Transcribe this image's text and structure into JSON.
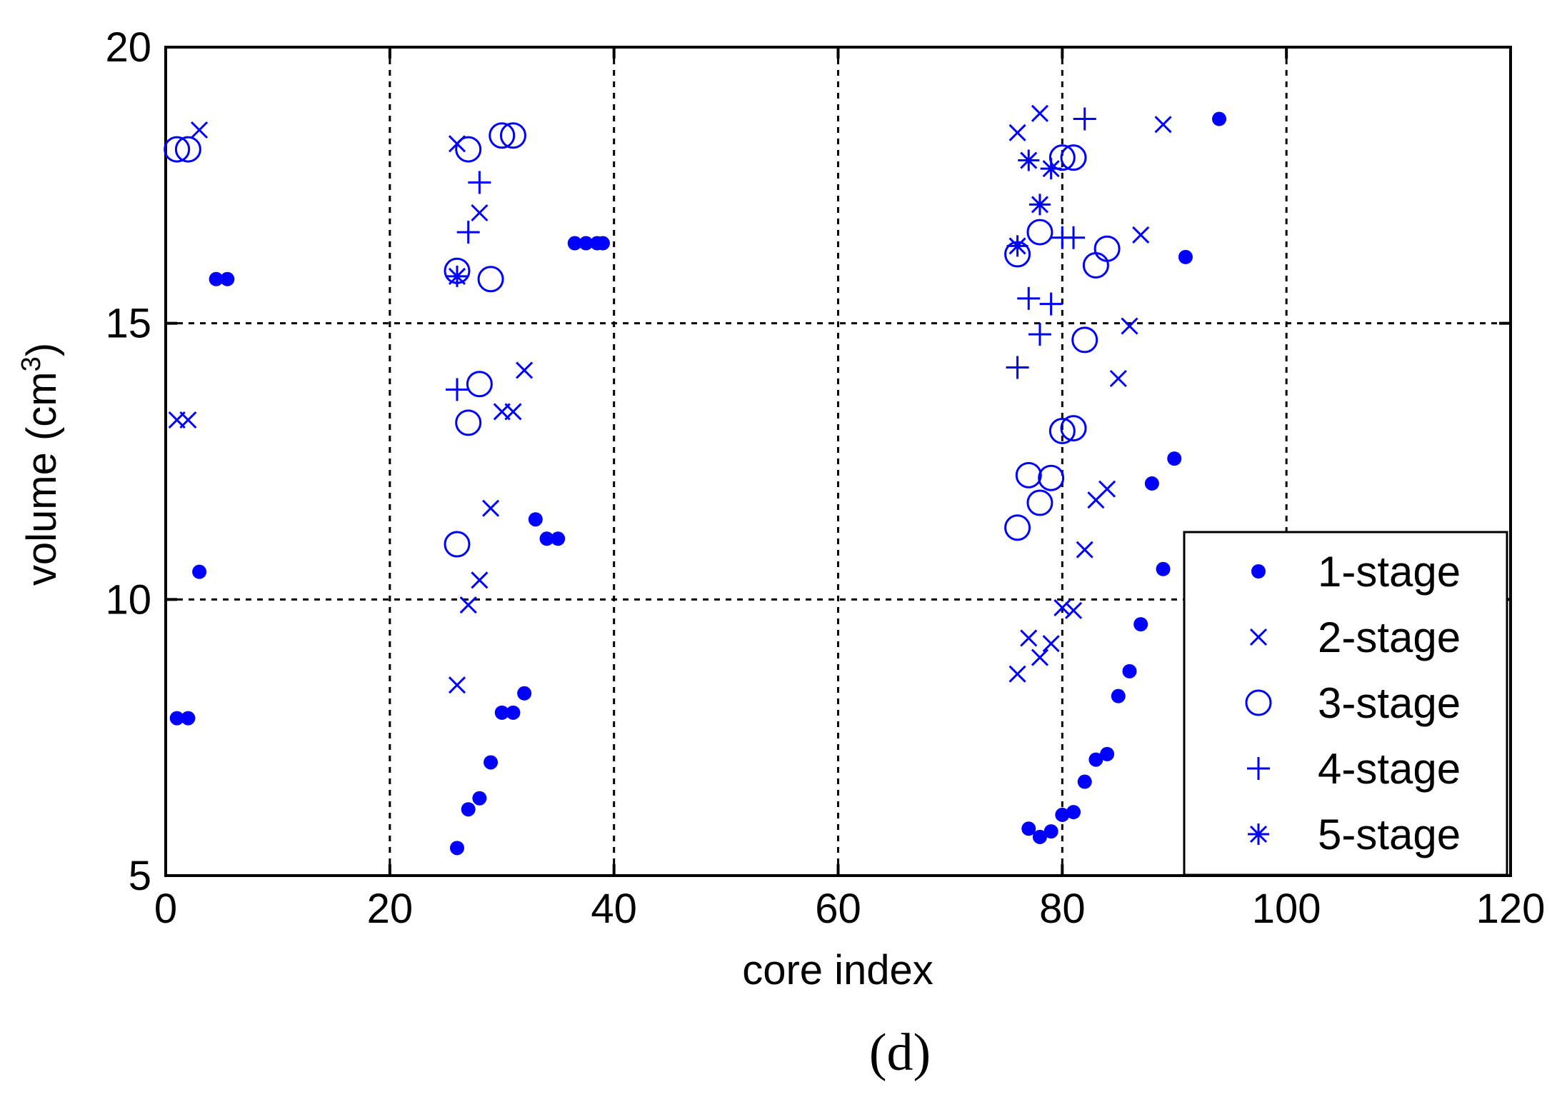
{
  "colors": {
    "marker": "#0000ff",
    "axis": "#000000",
    "background": "#ffffff"
  },
  "caption": "(d)",
  "chart_data": {
    "type": "scatter",
    "title": "",
    "xlabel": "core index",
    "ylabel_main": "volume (cm",
    "ylabel_sup": "3",
    "ylabel_end": ")",
    "xlim": [
      0,
      120
    ],
    "ylim": [
      5,
      20
    ],
    "xticks": [
      0,
      20,
      40,
      60,
      80,
      100,
      120
    ],
    "yticks": [
      5,
      10,
      15,
      20
    ],
    "grid": true,
    "legend_position": "bottom-right",
    "series": [
      {
        "name": "1-stage",
        "marker": "dot",
        "points": [
          [
            1,
            7.85
          ],
          [
            2,
            7.85
          ],
          [
            3,
            10.5
          ],
          [
            4.5,
            15.8
          ],
          [
            5.5,
            15.8
          ],
          [
            26,
            5.5
          ],
          [
            27,
            6.2
          ],
          [
            28,
            6.4
          ],
          [
            29,
            7.05
          ],
          [
            30,
            7.95
          ],
          [
            31,
            7.95
          ],
          [
            32,
            8.3
          ],
          [
            33,
            11.45
          ],
          [
            34,
            11.1
          ],
          [
            35,
            11.1
          ],
          [
            36.5,
            16.45
          ],
          [
            37.5,
            16.45
          ],
          [
            38.5,
            16.45
          ],
          [
            39,
            16.45
          ],
          [
            77,
            5.85
          ],
          [
            78,
            5.7
          ],
          [
            79,
            5.8
          ],
          [
            80,
            6.1
          ],
          [
            81,
            6.15
          ],
          [
            82,
            6.7
          ],
          [
            83,
            7.1
          ],
          [
            84,
            7.2
          ],
          [
            85,
            8.25
          ],
          [
            86,
            8.7
          ],
          [
            87,
            9.55
          ],
          [
            88,
            12.1
          ],
          [
            89,
            10.55
          ],
          [
            90,
            12.55
          ],
          [
            91,
            16.2
          ],
          [
            94,
            18.7
          ]
        ]
      },
      {
        "name": "2-stage",
        "marker": "x",
        "points": [
          [
            1,
            13.25
          ],
          [
            2,
            13.25
          ],
          [
            3,
            18.5
          ],
          [
            26,
            8.45
          ],
          [
            26,
            18.25
          ],
          [
            27,
            9.9
          ],
          [
            28,
            10.35
          ],
          [
            28,
            17.0
          ],
          [
            29,
            11.65
          ],
          [
            30,
            13.4
          ],
          [
            31,
            13.4
          ],
          [
            32,
            14.15
          ],
          [
            76,
            18.45
          ],
          [
            76,
            8.65
          ],
          [
            77,
            9.3
          ],
          [
            78,
            18.8
          ],
          [
            78,
            8.95
          ],
          [
            79,
            9.2
          ],
          [
            80,
            9.85
          ],
          [
            81,
            9.8
          ],
          [
            82,
            10.9
          ],
          [
            83,
            11.8
          ],
          [
            84,
            12.0
          ],
          [
            85,
            14.0
          ],
          [
            86,
            14.95
          ],
          [
            87,
            16.6
          ],
          [
            89,
            18.6
          ]
        ]
      },
      {
        "name": "3-stage",
        "marker": "circle",
        "points": [
          [
            1,
            18.15
          ],
          [
            2,
            18.15
          ],
          [
            26,
            11.0
          ],
          [
            26,
            15.95
          ],
          [
            27,
            13.2
          ],
          [
            27,
            18.15
          ],
          [
            28,
            13.9
          ],
          [
            29,
            15.8
          ],
          [
            30,
            18.4
          ],
          [
            31,
            18.4
          ],
          [
            76,
            11.3
          ],
          [
            76,
            16.25
          ],
          [
            77,
            12.25
          ],
          [
            78,
            11.75
          ],
          [
            78,
            16.65
          ],
          [
            79,
            12.2
          ],
          [
            80,
            13.05
          ],
          [
            80,
            18.0
          ],
          [
            81,
            13.1
          ],
          [
            81,
            18.0
          ],
          [
            82,
            14.7
          ],
          [
            83,
            16.05
          ],
          [
            84,
            16.35
          ]
        ]
      },
      {
        "name": "4-stage",
        "marker": "plus",
        "points": [
          [
            26,
            13.8
          ],
          [
            27,
            16.65
          ],
          [
            28,
            17.55
          ],
          [
            76,
            14.2
          ],
          [
            77,
            15.45
          ],
          [
            78,
            14.8
          ],
          [
            79,
            15.35
          ],
          [
            80,
            16.55
          ],
          [
            81,
            16.55
          ],
          [
            82,
            18.7
          ]
        ]
      },
      {
        "name": "5-stage",
        "marker": "star",
        "points": [
          [
            26,
            15.85
          ],
          [
            76,
            16.4
          ],
          [
            77,
            17.95
          ],
          [
            78,
            17.15
          ],
          [
            79,
            17.8
          ]
        ]
      }
    ]
  }
}
